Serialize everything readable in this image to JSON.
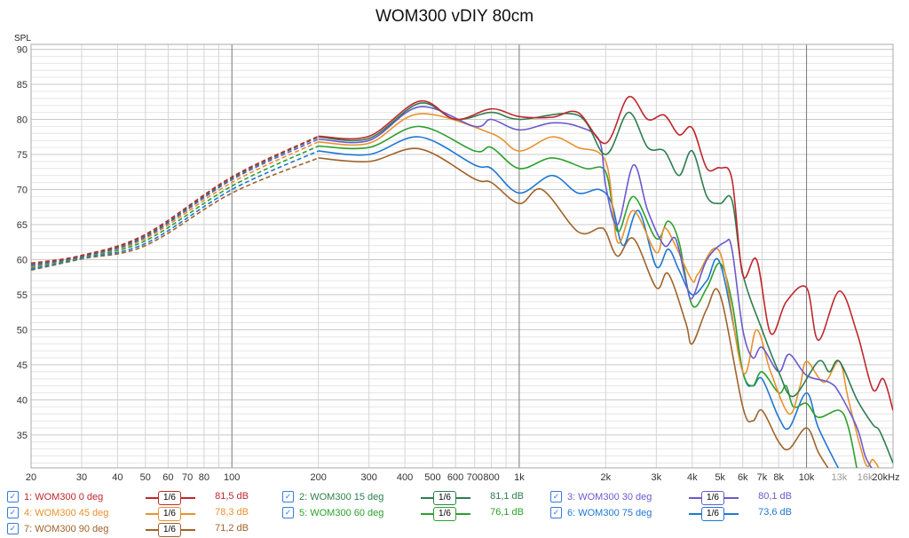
{
  "chart_data": {
    "type": "line",
    "title": "WOM300 vDIY 80cm",
    "ylabel": "SPL",
    "xlabel": "Hz",
    "xscale": "log",
    "xlim": [
      20,
      20000
    ],
    "ylim": [
      30.3,
      90.7
    ],
    "yticks": [
      35,
      40,
      45,
      50,
      55,
      60,
      65,
      70,
      75,
      80,
      85,
      90
    ],
    "xticks": [
      {
        "f": 20,
        "l": "20"
      },
      {
        "f": 30,
        "l": "30"
      },
      {
        "f": 40,
        "l": "40"
      },
      {
        "f": 50,
        "l": "50"
      },
      {
        "f": 60,
        "l": "60"
      },
      {
        "f": 70,
        "l": "70"
      },
      {
        "f": 80,
        "l": "80"
      },
      {
        "f": 100,
        "l": "100"
      },
      {
        "f": 200,
        "l": "200"
      },
      {
        "f": 300,
        "l": "300"
      },
      {
        "f": 400,
        "l": "400"
      },
      {
        "f": 500,
        "l": "500"
      },
      {
        "f": 600,
        "l": "600"
      },
      {
        "f": 700,
        "l": "700"
      },
      {
        "f": 800,
        "l": "800"
      },
      {
        "f": 1000,
        "l": "1k"
      },
      {
        "f": 2000,
        "l": "2k"
      },
      {
        "f": 3000,
        "l": "3k"
      },
      {
        "f": 4000,
        "l": "4k"
      },
      {
        "f": 5000,
        "l": "5k"
      },
      {
        "f": 6000,
        "l": "6k"
      },
      {
        "f": 7000,
        "l": "7k"
      },
      {
        "f": 8000,
        "l": "8k"
      },
      {
        "f": 10000,
        "l": "10k"
      },
      {
        "f": 13000,
        "l": "13k"
      },
      {
        "f": 16000,
        "l": "16k"
      },
      {
        "f": 20000,
        "l": "20kHz"
      }
    ],
    "dashed_below_hz": 200,
    "grid": true,
    "series": [
      {
        "name": "1: WOM300 0 deg",
        "smoothing": "1/6",
        "value": "81,5 dB",
        "color": "#c0272d",
        "points": [
          [
            20,
            59.5
          ],
          [
            30,
            60.6
          ],
          [
            50,
            63.6
          ],
          [
            100,
            71.8
          ],
          [
            200,
            77.6
          ],
          [
            300,
            77.6
          ],
          [
            450,
            82.6
          ],
          [
            600,
            80
          ],
          [
            800,
            81.5
          ],
          [
            1000,
            80.4
          ],
          [
            1300,
            80.3
          ],
          [
            1600,
            81
          ],
          [
            2000,
            76.6
          ],
          [
            2400,
            83.2
          ],
          [
            2800,
            80
          ],
          [
            3200,
            80.6
          ],
          [
            3600,
            77.8
          ],
          [
            4000,
            78.8
          ],
          [
            4500,
            73
          ],
          [
            5000,
            73.1
          ],
          [
            5500,
            71.5
          ],
          [
            6000,
            57.8
          ],
          [
            6700,
            60
          ],
          [
            7500,
            49.5
          ],
          [
            8500,
            54
          ],
          [
            10000,
            56
          ],
          [
            11000,
            48.5
          ],
          [
            13000,
            55.5
          ],
          [
            15000,
            49.5
          ],
          [
            17000,
            41.5
          ],
          [
            18500,
            43
          ],
          [
            20000,
            38.5
          ]
        ]
      },
      {
        "name": "2: WOM300 15 deg",
        "smoothing": "1/6",
        "value": "81,1 dB",
        "color": "#2e7d4f",
        "points": [
          [
            20,
            59.3
          ],
          [
            30,
            60.5
          ],
          [
            50,
            63.4
          ],
          [
            100,
            71.6
          ],
          [
            200,
            77.5
          ],
          [
            300,
            77.3
          ],
          [
            450,
            82.3
          ],
          [
            600,
            80
          ],
          [
            800,
            81
          ],
          [
            1000,
            80
          ],
          [
            1600,
            80.6
          ],
          [
            2000,
            75
          ],
          [
            2400,
            81
          ],
          [
            2800,
            76
          ],
          [
            3200,
            75.5
          ],
          [
            3600,
            72
          ],
          [
            4000,
            75.5
          ],
          [
            4500,
            69
          ],
          [
            5000,
            68
          ],
          [
            5500,
            68.5
          ],
          [
            6000,
            58
          ],
          [
            7000,
            50
          ],
          [
            8000,
            44
          ],
          [
            9000,
            40.5
          ],
          [
            11000,
            45.5
          ],
          [
            12000,
            44
          ],
          [
            13000,
            45.5
          ],
          [
            15000,
            40
          ],
          [
            17000,
            36.5
          ],
          [
            18000,
            35.5
          ],
          [
            20000,
            31
          ]
        ]
      },
      {
        "name": "3: WOM300 30 deg",
        "smoothing": "1/6",
        "value": "80,1 dB",
        "color": "#6a5acd",
        "points": [
          [
            20,
            59.1
          ],
          [
            30,
            60.4
          ],
          [
            50,
            63.2
          ],
          [
            100,
            71.4
          ],
          [
            200,
            77.2
          ],
          [
            300,
            77
          ],
          [
            450,
            81.8
          ],
          [
            700,
            79
          ],
          [
            800,
            80
          ],
          [
            1000,
            78.5
          ],
          [
            1300,
            79.5
          ],
          [
            1600,
            79
          ],
          [
            1900,
            77
          ],
          [
            2000,
            70.5
          ],
          [
            2200,
            65
          ],
          [
            2500,
            73.5
          ],
          [
            2800,
            67
          ],
          [
            3200,
            62
          ],
          [
            3500,
            63
          ],
          [
            3800,
            57
          ],
          [
            4000,
            54.5
          ],
          [
            4500,
            60
          ],
          [
            5200,
            62.5
          ],
          [
            5500,
            61.5
          ],
          [
            6000,
            50
          ],
          [
            6500,
            46
          ],
          [
            7000,
            47.5
          ],
          [
            8000,
            44
          ],
          [
            8700,
            46.5
          ],
          [
            10000,
            43.5
          ],
          [
            12000,
            42.5
          ],
          [
            13000,
            41
          ],
          [
            15000,
            36
          ],
          [
            16000,
            32
          ],
          [
            17000,
            30
          ]
        ]
      },
      {
        "name": "4: WOM300 45 deg",
        "smoothing": "1/6",
        "value": "78,3 dB",
        "color": "#e8922e",
        "points": [
          [
            20,
            59
          ],
          [
            30,
            60.4
          ],
          [
            50,
            63
          ],
          [
            100,
            71
          ],
          [
            200,
            76.8
          ],
          [
            300,
            76.6
          ],
          [
            450,
            80.8
          ],
          [
            800,
            78
          ],
          [
            1000,
            75.5
          ],
          [
            1300,
            77.5
          ],
          [
            1600,
            76
          ],
          [
            2000,
            74
          ],
          [
            2200,
            62.5
          ],
          [
            2500,
            67
          ],
          [
            3000,
            61
          ],
          [
            3200,
            64.5
          ],
          [
            3500,
            62
          ],
          [
            4000,
            57
          ],
          [
            4200,
            58
          ],
          [
            5000,
            61
          ],
          [
            6000,
            44
          ],
          [
            6700,
            50
          ],
          [
            7500,
            44
          ],
          [
            8700,
            38
          ],
          [
            9500,
            42
          ],
          [
            10000,
            45.5
          ],
          [
            11500,
            42.5
          ],
          [
            13000,
            45.5
          ],
          [
            14000,
            40
          ],
          [
            16000,
            31
          ],
          [
            17000,
            31.5
          ],
          [
            18000,
            30
          ]
        ]
      },
      {
        "name": "5: WOM300 60 deg",
        "smoothing": "1/6",
        "value": "76,1 dB",
        "color": "#2ca02c",
        "points": [
          [
            20,
            58.8
          ],
          [
            30,
            60.3
          ],
          [
            50,
            62.7
          ],
          [
            100,
            70.5
          ],
          [
            200,
            76.2
          ],
          [
            300,
            76
          ],
          [
            450,
            79
          ],
          [
            700,
            75.5
          ],
          [
            800,
            76
          ],
          [
            1000,
            73
          ],
          [
            1300,
            74.5
          ],
          [
            1700,
            73
          ],
          [
            2000,
            72.5
          ],
          [
            2200,
            64
          ],
          [
            2500,
            69
          ],
          [
            3000,
            63
          ],
          [
            3300,
            65.5
          ],
          [
            3600,
            62.5
          ],
          [
            4000,
            53.5
          ],
          [
            4500,
            56
          ],
          [
            5000,
            59.5
          ],
          [
            5500,
            54
          ],
          [
            6000,
            44
          ],
          [
            6500,
            42
          ],
          [
            7000,
            44
          ],
          [
            8000,
            41
          ],
          [
            8500,
            42
          ],
          [
            9000,
            39
          ],
          [
            10000,
            39.5
          ],
          [
            11000,
            37.5
          ],
          [
            13000,
            38.5
          ],
          [
            14000,
            36
          ],
          [
            15000,
            30
          ]
        ]
      },
      {
        "name": "6: WOM300 75 deg",
        "smoothing": "1/6",
        "value": "73,6 dB",
        "color": "#1f77d4",
        "points": [
          [
            20,
            58.6
          ],
          [
            30,
            60.2
          ],
          [
            50,
            62.3
          ],
          [
            100,
            70
          ],
          [
            200,
            75.5
          ],
          [
            300,
            75
          ],
          [
            450,
            77.5
          ],
          [
            700,
            73.5
          ],
          [
            800,
            73
          ],
          [
            1000,
            69.5
          ],
          [
            1300,
            72
          ],
          [
            1600,
            69.5
          ],
          [
            1900,
            70
          ],
          [
            2100,
            68
          ],
          [
            2300,
            62
          ],
          [
            2600,
            67
          ],
          [
            3000,
            59
          ],
          [
            3300,
            61.5
          ],
          [
            3600,
            58.5
          ],
          [
            4000,
            55
          ],
          [
            4500,
            57
          ],
          [
            5000,
            59.5
          ],
          [
            6000,
            44
          ],
          [
            6500,
            42
          ],
          [
            7000,
            43
          ],
          [
            8000,
            37.5
          ],
          [
            8700,
            36
          ],
          [
            10000,
            41
          ],
          [
            11000,
            36
          ],
          [
            13000,
            30
          ]
        ]
      },
      {
        "name": "7: WOM300 90 deg",
        "smoothing": "1/6",
        "value": "71,2 dB",
        "color": "#a0632a",
        "points": [
          [
            20,
            58.5
          ],
          [
            30,
            60.1
          ],
          [
            50,
            62
          ],
          [
            100,
            69.5
          ],
          [
            200,
            74.5
          ],
          [
            300,
            74
          ],
          [
            450,
            75.8
          ],
          [
            700,
            71.5
          ],
          [
            800,
            71
          ],
          [
            1000,
            68
          ],
          [
            1200,
            70
          ],
          [
            1600,
            64
          ],
          [
            1900,
            64.5
          ],
          [
            2000,
            64
          ],
          [
            2200,
            60.5
          ],
          [
            2500,
            63
          ],
          [
            3000,
            56
          ],
          [
            3300,
            58
          ],
          [
            3800,
            51
          ],
          [
            4000,
            48
          ],
          [
            4500,
            53
          ],
          [
            5000,
            55
          ],
          [
            6000,
            39
          ],
          [
            6500,
            37
          ],
          [
            7000,
            38.5
          ],
          [
            8000,
            34
          ],
          [
            8700,
            33
          ],
          [
            10000,
            36
          ],
          [
            11000,
            32.5
          ],
          [
            12000,
            30
          ]
        ]
      }
    ]
  }
}
